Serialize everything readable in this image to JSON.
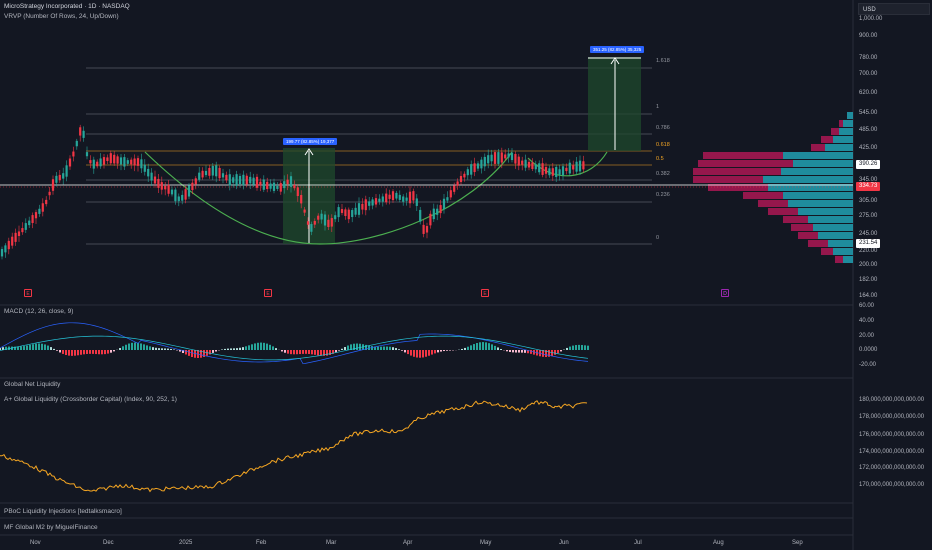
{
  "header": {
    "symbol_line": "MicroStrategy Incorporated · 1D · NASDAQ",
    "vrvp_line": "VRVP (Number Of Rows, 24, Up/Down)",
    "currency": "USD"
  },
  "price_axis": {
    "labels": [
      "1,000.00",
      "900.00",
      "780.00",
      "700.00",
      "620.00",
      "545.00",
      "485.00",
      "425.00",
      "345.00",
      "305.00",
      "275.00",
      "245.00",
      "220.00",
      "200.00",
      "182.00",
      "164.00"
    ],
    "current_price": "390.26",
    "cursor_price": "334.73",
    "low_price": "231.54"
  },
  "fib_levels": [
    "1.618",
    "1",
    "0.786",
    "0.618",
    "0.5",
    "0.382",
    "0.236",
    "0"
  ],
  "measurements": {
    "first": "199.77 (82.85%) 19,377",
    "second": "351.25 (82.85%) 35,325"
  },
  "event_markers": [
    "E",
    "E",
    "E",
    "D"
  ],
  "macd": {
    "title": "MACD (12, 26, close, 9)",
    "labels": [
      "60.00",
      "40.00",
      "20.00",
      "0.0000",
      "-20.00"
    ]
  },
  "liquidity": {
    "title1": "Global Net Liquidity",
    "title2": "A+ Global Liquidity (Crossborder Capital) (Index, 90, 252, 1)",
    "labels": [
      "180,000,000,000,000.00",
      "178,000,000,000,000.00",
      "176,000,000,000,000.00",
      "174,000,000,000,000.00",
      "172,000,000,000,000.00",
      "170,000,000,000,000.00"
    ]
  },
  "bottom_indicators": {
    "pboc": "PBoC Liquidity Injections [tedtalksmacro]",
    "m2": "MF Global M2 by MiguelFinance"
  },
  "time_axis": [
    "Nov",
    "Dec",
    "2025",
    "Feb",
    "Mar",
    "Apr",
    "May",
    "Jun",
    "Jul",
    "Aug",
    "Sep"
  ],
  "colors": {
    "up": "#26a69a",
    "down": "#f23645",
    "accent": "#2962ff",
    "liquidity_line": "#f5a623",
    "curve": "#4caf50"
  }
}
